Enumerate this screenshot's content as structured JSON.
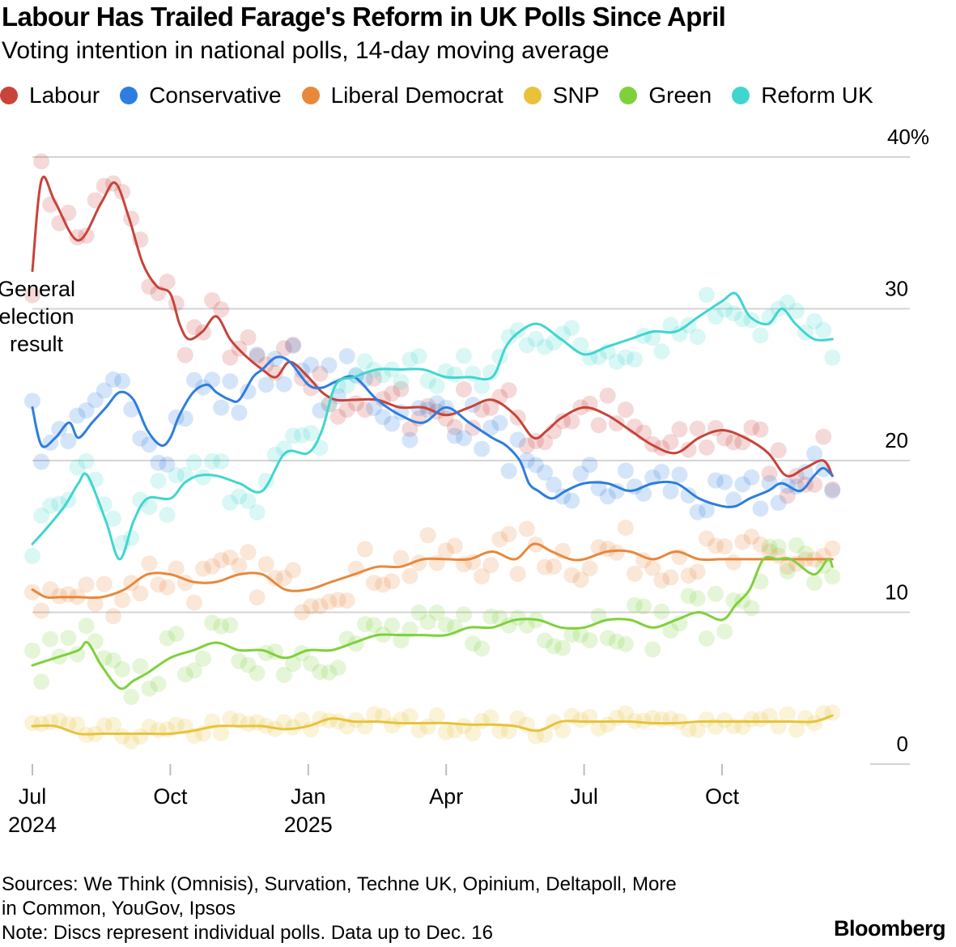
{
  "title": "Labour Has Trailed Farage's Reform in UK Polls Since April",
  "subtitle": "Voting intention in national polls, 14-day moving average",
  "legend": [
    {
      "name": "Labour",
      "color": "#c8433a"
    },
    {
      "name": "Conservative",
      "color": "#2e7de0"
    },
    {
      "name": "Liberal Democrat",
      "color": "#e8883a"
    },
    {
      "name": "SNP",
      "color": "#e8c33a"
    },
    {
      "name": "Green",
      "color": "#7fd13b"
    },
    {
      "name": "Reform UK",
      "color": "#3fd6cf"
    }
  ],
  "annotation": "General election result",
  "footer": {
    "sources_line1": "Sources: We Think (Omnisis), Survation, Techne UK, Opinium, Deltapoll, More",
    "sources_line2": "in Common, YouGov, Ipsos",
    "note": "Note: Discs represent individual polls. Data up to Dec. 16"
  },
  "brand": "Bloomberg",
  "chart_data": {
    "type": "line",
    "title": "Labour Has Trailed Farage's Reform in UK Polls Since April",
    "xlabel": "",
    "ylabel": "",
    "ylim": [
      0,
      40
    ],
    "xlim": [
      0,
      17.5
    ],
    "x_unit": "months since Jul 1, 2024",
    "y_ticks": [
      {
        "value": 40,
        "label": "40%"
      },
      {
        "value": 30,
        "label": "30"
      },
      {
        "value": 20,
        "label": "20"
      },
      {
        "value": 10,
        "label": "10"
      },
      {
        "value": 0,
        "label": "0"
      }
    ],
    "x_ticks": [
      {
        "value": 0,
        "label": "Jul",
        "sub": "2024"
      },
      {
        "value": 3,
        "label": "Oct",
        "sub": ""
      },
      {
        "value": 6,
        "label": "Jan",
        "sub": "2025"
      },
      {
        "value": 9,
        "label": "Apr",
        "sub": ""
      },
      {
        "value": 12,
        "label": "Jul",
        "sub": ""
      },
      {
        "value": 15,
        "label": "Oct",
        "sub": ""
      }
    ],
    "series": [
      {
        "name": "Labour",
        "color": "#c8433a",
        "x": [
          0,
          0.2,
          0.5,
          1.0,
          1.5,
          1.8,
          2.1,
          2.4,
          2.7,
          3.0,
          3.2,
          3.4,
          3.7,
          4.0,
          4.3,
          4.6,
          5.0,
          5.3,
          5.6,
          6.0,
          6.3,
          6.6,
          7.0,
          7.5,
          8.0,
          8.5,
          9.0,
          9.5,
          10.0,
          10.5,
          10.9,
          11.2,
          11.5,
          12.0,
          12.5,
          13.0,
          13.5,
          14.0,
          14.5,
          15.0,
          15.5,
          16.0,
          16.4,
          16.8,
          17.2,
          17.4
        ],
        "values": [
          32.5,
          38.5,
          37,
          34.5,
          37,
          38.3,
          36,
          33,
          31.5,
          31,
          29,
          28,
          28.5,
          29.5,
          28,
          27,
          26,
          25.5,
          26.5,
          25.5,
          24.5,
          24,
          24,
          24,
          23.5,
          23.5,
          23,
          23.5,
          24,
          23,
          21.5,
          22,
          22.8,
          23.5,
          23,
          22,
          21,
          20.5,
          21.5,
          22,
          21.5,
          20.5,
          19,
          19.5,
          20,
          19
        ]
      },
      {
        "name": "Conservative",
        "color": "#2e7de0",
        "x": [
          0,
          0.2,
          0.5,
          0.8,
          1.0,
          1.3,
          1.6,
          1.9,
          2.2,
          2.5,
          2.8,
          3.0,
          3.2,
          3.5,
          3.8,
          4.0,
          4.3,
          4.5,
          4.8,
          5.0,
          5.3,
          5.6,
          6.0,
          6.3,
          6.6,
          7.0,
          7.5,
          8.0,
          8.5,
          9.0,
          9.5,
          10.0,
          10.3,
          10.6,
          10.8,
          11.0,
          11.3,
          11.6,
          12.0,
          12.5,
          13.0,
          13.5,
          14.0,
          14.5,
          15.0,
          15.3,
          15.6,
          16.0,
          16.3,
          16.7,
          17.0,
          17.2,
          17.4
        ],
        "values": [
          23.5,
          21,
          21.5,
          22.5,
          21.5,
          22.5,
          23.5,
          24.5,
          24,
          22,
          21,
          21.5,
          23,
          24.5,
          25,
          24.5,
          24,
          24,
          25.5,
          26,
          26.8,
          26.5,
          25,
          24.8,
          25.2,
          25.5,
          24,
          23,
          22.5,
          23.5,
          22.5,
          21.5,
          21,
          20,
          18.5,
          18,
          17.5,
          18,
          18.5,
          18.5,
          18,
          18.5,
          18.5,
          17.5,
          17,
          17,
          17.5,
          18,
          18.5,
          18,
          19,
          19.5,
          19
        ]
      },
      {
        "name": "Liberal Democrat",
        "color": "#e8883a",
        "x": [
          0,
          0.3,
          0.6,
          1.0,
          1.5,
          2.0,
          2.5,
          3.0,
          3.5,
          4.0,
          4.5,
          5.0,
          5.5,
          6.0,
          6.5,
          7.0,
          7.5,
          8.0,
          8.5,
          9.0,
          9.5,
          10.0,
          10.5,
          10.9,
          11.3,
          11.7,
          12.0,
          12.5,
          13.0,
          13.5,
          14.0,
          14.5,
          15.0,
          15.5,
          16.0,
          16.5,
          17.0,
          17.3,
          17.4
        ],
        "values": [
          11.5,
          11,
          11,
          11,
          11,
          11.5,
          12.5,
          12.5,
          12,
          12,
          12.5,
          12.5,
          11.5,
          11.5,
          12,
          12.5,
          13,
          13,
          13.5,
          13.5,
          13.5,
          14,
          13.5,
          14.5,
          14,
          13.5,
          13.5,
          14,
          14,
          13.5,
          14,
          13.5,
          13.5,
          13.5,
          13.5,
          13.5,
          13.5,
          13.5,
          13.5
        ]
      },
      {
        "name": "SNP",
        "color": "#e8c33a",
        "x": [
          0,
          0.5,
          1.0,
          1.5,
          2.0,
          2.5,
          3.0,
          3.5,
          4.0,
          4.5,
          5.0,
          5.5,
          6.0,
          6.5,
          7.0,
          7.5,
          8.0,
          8.5,
          9.0,
          9.5,
          10.0,
          10.5,
          11.0,
          11.5,
          12.0,
          12.5,
          13.0,
          13.5,
          14.0,
          14.5,
          15.0,
          15.5,
          16.0,
          16.5,
          17.0,
          17.4
        ],
        "values": [
          2.5,
          2.5,
          2,
          2,
          2,
          2,
          2,
          2.2,
          2.5,
          2.5,
          2.5,
          2.3,
          2.5,
          3,
          2.8,
          2.8,
          2.7,
          2.7,
          2.7,
          2.6,
          2.6,
          2.5,
          2.2,
          2.8,
          2.8,
          2.8,
          2.8,
          2.7,
          2.7,
          2.8,
          2.8,
          2.8,
          2.8,
          2.8,
          2.8,
          3.2
        ]
      },
      {
        "name": "Green",
        "color": "#7fd13b",
        "x": [
          0,
          0.5,
          1.0,
          1.2,
          1.5,
          1.9,
          2.2,
          2.5,
          3.0,
          3.5,
          4.0,
          4.5,
          5.0,
          5.5,
          6.0,
          6.5,
          7.0,
          7.5,
          8.0,
          8.5,
          9.0,
          9.5,
          10.0,
          10.5,
          11.0,
          11.5,
          12.0,
          12.5,
          13.0,
          13.5,
          14.0,
          14.5,
          15.0,
          15.3,
          15.6,
          15.9,
          16.2,
          16.5,
          17.0,
          17.3,
          17.4
        ],
        "values": [
          6.5,
          7,
          7.5,
          8,
          6.5,
          5,
          5.5,
          6,
          7,
          7.5,
          8,
          7.5,
          7.5,
          7,
          7.5,
          7.5,
          8,
          8.5,
          8.5,
          8.5,
          8.5,
          9,
          9,
          9.5,
          9.5,
          9,
          9,
          9.5,
          9.5,
          9,
          9.5,
          10,
          9.5,
          10.5,
          11.5,
          13.5,
          13.5,
          13.5,
          12.5,
          13.5,
          13
        ]
      },
      {
        "name": "Reform UK",
        "color": "#3fd6cf",
        "x": [
          0,
          0.3,
          0.7,
          1.0,
          1.2,
          1.6,
          1.9,
          2.2,
          2.5,
          3.0,
          3.3,
          3.6,
          4.0,
          4.5,
          5.0,
          5.5,
          6.0,
          6.3,
          6.6,
          7.0,
          7.5,
          8.0,
          8.5,
          9.0,
          9.5,
          10.0,
          10.3,
          10.6,
          11.0,
          11.5,
          12.0,
          12.5,
          13.0,
          13.5,
          14.0,
          14.5,
          15.0,
          15.3,
          15.6,
          16.0,
          16.3,
          16.6,
          17.0,
          17.4
        ],
        "values": [
          14.5,
          15.5,
          17,
          18.5,
          19,
          16,
          13.5,
          16,
          17.5,
          17.5,
          18.5,
          19,
          19,
          18.5,
          18,
          20.5,
          20.5,
          22,
          25,
          25.5,
          26,
          26,
          26,
          25.5,
          25.5,
          25.5,
          27.5,
          28.5,
          29,
          28,
          27,
          27.5,
          28,
          28.5,
          28.5,
          29.5,
          30.5,
          31,
          29.5,
          29,
          30,
          29,
          28,
          28
        ]
      }
    ]
  }
}
